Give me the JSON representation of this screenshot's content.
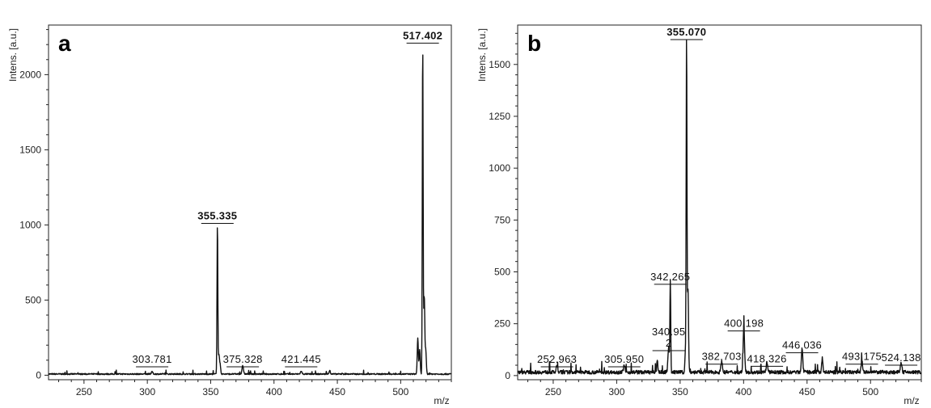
{
  "chart_data": [
    {
      "type": "line",
      "panel_label": "a",
      "xlabel": "m/z",
      "ylabel": "Intens. [a.u.]",
      "xlim": [
        222,
        540
      ],
      "ylim": [
        -30,
        2330
      ],
      "x_ticks": [
        250,
        300,
        350,
        400,
        450,
        500
      ],
      "y_ticks": [
        0,
        500,
        1000,
        1500,
        2000
      ],
      "noise_level": 12,
      "peaks": [
        {
          "x": 303.781,
          "y": 15,
          "label": "303.781",
          "bold": false
        },
        {
          "x": 355.335,
          "y": 1010,
          "label": "355.335",
          "bold": true
        },
        {
          "x": 375.328,
          "y": 55,
          "label": "375.328",
          "bold": false
        },
        {
          "x": 421.445,
          "y": 18,
          "label": "421.445",
          "bold": false
        },
        {
          "x": 517.402,
          "y": 2210,
          "label": "517.402",
          "bold": true
        }
      ],
      "extra_peaks": [
        {
          "x": 356.5,
          "y": 130
        },
        {
          "x": 357.5,
          "y": 60
        },
        {
          "x": 513.5,
          "y": 240
        },
        {
          "x": 515.0,
          "y": 160
        },
        {
          "x": 518.6,
          "y": 520
        },
        {
          "x": 519.8,
          "y": 160
        },
        {
          "x": 444.0,
          "y": 28
        }
      ]
    },
    {
      "type": "line",
      "panel_label": "b",
      "xlabel": "m/z",
      "ylabel": "Intens. [a.u.]",
      "xlim": [
        222,
        540
      ],
      "ylim": [
        -20,
        1690
      ],
      "x_ticks": [
        250,
        300,
        350,
        400,
        450,
        500
      ],
      "y_ticks": [
        0,
        250,
        500,
        750,
        1000,
        1250,
        1500
      ],
      "noise_level": 25,
      "peaks": [
        {
          "x": 252.963,
          "y": 30,
          "label": "252.963",
          "bold": false
        },
        {
          "x": 305.95,
          "y": 35,
          "label": "305.950",
          "bold": false
        },
        {
          "x": 340.952,
          "y": 120,
          "label": "340.95\n2",
          "bold": false
        },
        {
          "x": 342.265,
          "y": 440,
          "label": "342.265",
          "bold": false
        },
        {
          "x": 355.07,
          "y": 1620,
          "label": "355.070",
          "bold": true
        },
        {
          "x": 382.703,
          "y": 55,
          "label": "382.703",
          "bold": false
        },
        {
          "x": 400.198,
          "y": 215,
          "label": "400.198",
          "bold": false
        },
        {
          "x": 418.326,
          "y": 45,
          "label": "418.326",
          "bold": false
        },
        {
          "x": 446.036,
          "y": 110,
          "label": "446.036",
          "bold": false
        },
        {
          "x": 493.175,
          "y": 55,
          "label": "493.175",
          "bold": false
        },
        {
          "x": 524.138,
          "y": 50,
          "label": "524.138",
          "bold": false
        }
      ],
      "extra_peaks": [
        {
          "x": 356.2,
          "y": 400
        },
        {
          "x": 354.2,
          "y": 90
        },
        {
          "x": 462.0,
          "y": 70
        },
        {
          "x": 332.0,
          "y": 60
        }
      ]
    }
  ]
}
